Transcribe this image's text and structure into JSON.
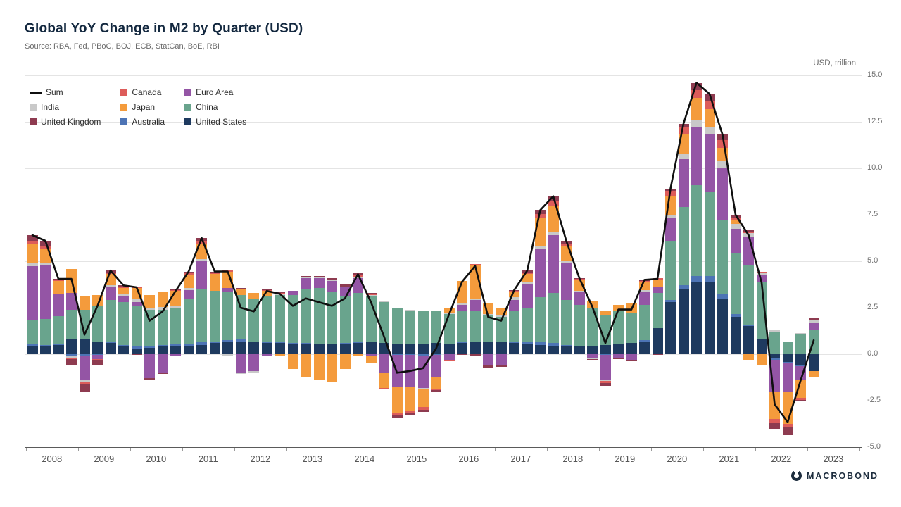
{
  "page": {
    "title": "Global YoY Change in M2 by Quarter (USD)",
    "source": "Source: RBA, Fed, PBoC, BOJ, ECB, StatCan, BoE, RBI",
    "unit_label": "USD, trillion",
    "brand": "MACROBOND"
  },
  "chart_data": {
    "type": "bar",
    "subtype": "stacked-bar-with-line",
    "grid": true,
    "legend_position": "top-left",
    "ylim": [
      -5,
      15
    ],
    "yticks": [
      {
        "value": 15,
        "label": "15.0"
      },
      {
        "value": 12.5,
        "label": "12.5"
      },
      {
        "value": 10,
        "label": "10.0"
      },
      {
        "value": 7.5,
        "label": "7.5"
      },
      {
        "value": 5,
        "label": "5.0"
      },
      {
        "value": 2.5,
        "label": "2.5"
      },
      {
        "value": 0,
        "label": "0.0"
      },
      {
        "value": -2.5,
        "label": "-2.5"
      },
      {
        "value": -5,
        "label": "-5.0"
      }
    ],
    "year_labels": [
      "2008",
      "2009",
      "2010",
      "2011",
      "2012",
      "2013",
      "2014",
      "2015",
      "2016",
      "2017",
      "2018",
      "2019",
      "2020",
      "2021",
      "2022",
      "2023"
    ],
    "x": [
      "2008 Q1",
      "2008 Q2",
      "2008 Q3",
      "2008 Q4",
      "2009 Q1",
      "2009 Q2",
      "2009 Q3",
      "2009 Q4",
      "2010 Q1",
      "2010 Q2",
      "2010 Q3",
      "2010 Q4",
      "2011 Q1",
      "2011 Q2",
      "2011 Q3",
      "2011 Q4",
      "2012 Q1",
      "2012 Q2",
      "2012 Q3",
      "2012 Q4",
      "2013 Q1",
      "2013 Q2",
      "2013 Q3",
      "2013 Q4",
      "2014 Q1",
      "2014 Q2",
      "2014 Q3",
      "2014 Q4",
      "2015 Q1",
      "2015 Q2",
      "2015 Q3",
      "2015 Q4",
      "2016 Q1",
      "2016 Q2",
      "2016 Q3",
      "2016 Q4",
      "2017 Q1",
      "2017 Q2",
      "2017 Q3",
      "2017 Q4",
      "2018 Q1",
      "2018 Q2",
      "2018 Q3",
      "2018 Q4",
      "2019 Q1",
      "2019 Q2",
      "2019 Q3",
      "2019 Q4",
      "2020 Q1",
      "2020 Q2",
      "2020 Q3",
      "2020 Q4",
      "2021 Q1",
      "2021 Q2",
      "2021 Q3",
      "2021 Q4",
      "2022 Q1",
      "2022 Q2",
      "2022 Q3",
      "2022 Q4",
      "2023 Q1"
    ],
    "series": [
      {
        "name": "United States",
        "color": "#1e3a5f",
        "values": [
          0.45,
          0.4,
          0.5,
          0.8,
          0.8,
          0.7,
          0.6,
          0.4,
          0.3,
          0.35,
          0.4,
          0.45,
          0.4,
          0.5,
          0.6,
          0.7,
          0.7,
          0.65,
          0.6,
          0.6,
          0.55,
          0.55,
          0.55,
          0.55,
          0.55,
          0.6,
          0.65,
          0.6,
          0.55,
          0.55,
          0.55,
          0.6,
          0.55,
          0.6,
          0.65,
          0.7,
          0.65,
          0.6,
          0.55,
          0.5,
          0.45,
          0.4,
          0.4,
          0.45,
          0.5,
          0.55,
          0.6,
          0.7,
          1.4,
          2.8,
          3.5,
          3.9,
          3.9,
          3.0,
          2.0,
          1.5,
          0.8,
          -0.2,
          -0.4,
          -0.6,
          -0.9
        ]
      },
      {
        "name": "Australia",
        "color": "#4d74b5",
        "values": [
          0.1,
          0.1,
          0.05,
          -0.1,
          -0.1,
          -0.05,
          0.1,
          0.1,
          0.1,
          0.05,
          0.1,
          0.1,
          0.15,
          0.2,
          0.1,
          0.05,
          0.1,
          0.05,
          0.1,
          0.1,
          0.05,
          0.05,
          0.0,
          0.0,
          0.05,
          0.1,
          0.05,
          0.0,
          -0.05,
          -0.05,
          -0.1,
          -0.05,
          0.0,
          0.05,
          0.05,
          0.0,
          0.05,
          0.1,
          0.1,
          0.15,
          0.15,
          0.1,
          0.05,
          0.0,
          -0.05,
          0.0,
          0.0,
          0.05,
          0.0,
          0.1,
          0.2,
          0.3,
          0.3,
          0.25,
          0.15,
          0.1,
          0.05,
          -0.1,
          -0.1,
          -0.05,
          0.0
        ]
      },
      {
        "name": "China",
        "color": "#69a48d",
        "values": [
          1.3,
          1.4,
          1.5,
          1.6,
          1.6,
          1.9,
          2.2,
          2.3,
          2.2,
          2.0,
          1.9,
          1.9,
          2.4,
          2.8,
          2.7,
          2.6,
          2.4,
          2.3,
          2.4,
          2.5,
          2.6,
          2.9,
          3.0,
          2.8,
          2.5,
          2.6,
          2.4,
          2.2,
          1.9,
          1.8,
          1.8,
          1.7,
          1.6,
          1.7,
          1.6,
          1.4,
          1.3,
          1.6,
          1.8,
          2.4,
          2.7,
          2.4,
          2.2,
          2.0,
          1.6,
          1.8,
          1.6,
          1.9,
          1.9,
          3.2,
          4.2,
          4.9,
          4.5,
          4.0,
          3.3,
          3.2,
          3.0,
          1.2,
          0.7,
          1.1,
          1.3
        ]
      },
      {
        "name": "Euro Area",
        "color": "#9455a5",
        "values": [
          2.9,
          2.9,
          1.2,
          0.9,
          -1.3,
          -0.2,
          0.7,
          0.3,
          0.2,
          -1.3,
          -1.0,
          -0.1,
          0.5,
          1.5,
          0.0,
          0.2,
          -1.0,
          -0.9,
          -0.1,
          0.0,
          0.2,
          0.6,
          0.55,
          0.6,
          0.55,
          0.8,
          -0.1,
          -1.0,
          -1.7,
          -1.7,
          -1.7,
          -1.2,
          -0.3,
          0.3,
          0.6,
          -0.6,
          -0.6,
          0.6,
          1.3,
          2.6,
          3.1,
          2.0,
          0.7,
          -0.2,
          -1.3,
          -0.2,
          -0.3,
          0.7,
          0.3,
          1.2,
          2.6,
          3.1,
          3.1,
          2.8,
          1.3,
          1.5,
          0.4,
          -1.7,
          -1.5,
          -0.7,
          0.4
        ]
      },
      {
        "name": "India",
        "color": "#c9c9c9",
        "values": [
          0.15,
          0.1,
          0.0,
          -0.1,
          -0.1,
          0.0,
          0.1,
          0.15,
          0.15,
          0.1,
          0.15,
          0.15,
          0.1,
          0.1,
          0.0,
          -0.1,
          -0.05,
          -0.1,
          0.0,
          0.05,
          0.0,
          0.05,
          0.05,
          0.05,
          0.0,
          0.05,
          0.1,
          0.05,
          0.0,
          0.05,
          -0.05,
          0.0,
          0.05,
          0.1,
          0.1,
          0.05,
          0.1,
          0.15,
          0.15,
          0.2,
          0.2,
          0.1,
          0.05,
          -0.05,
          -0.1,
          0.0,
          0.05,
          0.1,
          0.0,
          0.2,
          0.3,
          0.4,
          0.4,
          0.35,
          0.25,
          0.2,
          0.15,
          0.1,
          -0.05,
          0.05,
          0.1
        ]
      },
      {
        "name": "Japan",
        "color": "#f49b3c",
        "values": [
          1.0,
          0.8,
          0.7,
          1.3,
          0.7,
          0.6,
          0.6,
          0.3,
          0.6,
          0.7,
          0.8,
          0.8,
          0.7,
          0.8,
          0.9,
          0.9,
          0.3,
          0.3,
          0.3,
          -0.1,
          -0.8,
          -1.2,
          -1.4,
          -1.5,
          -0.8,
          -0.1,
          -0.4,
          -0.8,
          -1.4,
          -1.3,
          -1.0,
          -0.6,
          0.3,
          1.2,
          1.8,
          0.6,
          0.4,
          0.3,
          0.4,
          1.5,
          1.4,
          0.8,
          0.6,
          0.4,
          0.2,
          0.3,
          0.5,
          0.4,
          0.4,
          1.0,
          1.0,
          1.2,
          1.0,
          0.7,
          0.2,
          -0.3,
          -0.6,
          -1.5,
          -1.7,
          -1.0,
          -0.3
        ]
      },
      {
        "name": "Canada",
        "color": "#dd5c5a",
        "values": [
          0.2,
          0.15,
          0.05,
          -0.05,
          -0.1,
          -0.05,
          0.1,
          0.1,
          0.1,
          0.0,
          0.0,
          0.05,
          0.1,
          0.2,
          0.1,
          0.05,
          0.0,
          0.0,
          0.05,
          0.05,
          0.0,
          0.0,
          0.0,
          0.0,
          0.0,
          0.1,
          0.05,
          -0.05,
          -0.15,
          -0.15,
          -0.15,
          -0.1,
          -0.05,
          0.0,
          0.05,
          0.0,
          0.0,
          0.05,
          0.1,
          0.2,
          0.25,
          0.15,
          0.05,
          0.0,
          -0.1,
          0.0,
          0.0,
          0.1,
          0.1,
          0.3,
          0.4,
          0.4,
          0.45,
          0.4,
          0.15,
          0.1,
          0.05,
          -0.2,
          -0.2,
          -0.1,
          0.05
        ]
      },
      {
        "name": "United Kingdom",
        "color": "#8e3b50",
        "values": [
          0.3,
          0.25,
          0.05,
          -0.3,
          -0.45,
          -0.3,
          0.1,
          0.05,
          -0.05,
          -0.1,
          -0.05,
          0.05,
          0.1,
          0.15,
          0.05,
          0.05,
          0.05,
          0.0,
          0.05,
          0.05,
          0.0,
          0.05,
          0.05,
          0.1,
          0.15,
          0.15,
          0.05,
          -0.05,
          -0.15,
          -0.1,
          -0.1,
          -0.05,
          0.0,
          -0.05,
          -0.1,
          -0.15,
          -0.1,
          0.05,
          0.1,
          0.2,
          0.25,
          0.15,
          0.05,
          -0.05,
          -0.15,
          -0.05,
          -0.05,
          0.05,
          -0.05,
          0.1,
          0.2,
          0.4,
          0.35,
          0.3,
          0.15,
          0.1,
          0.0,
          -0.3,
          -0.4,
          -0.1,
          0.1
        ]
      }
    ],
    "line_series": {
      "name": "Sum",
      "color": "#0f0f0f",
      "values": [
        6.4,
        6.1,
        4.05,
        4.05,
        1.05,
        2.6,
        4.5,
        3.7,
        3.6,
        1.8,
        2.3,
        3.4,
        4.45,
        6.25,
        4.45,
        4.45,
        2.5,
        2.3,
        3.4,
        3.25,
        2.6,
        3.0,
        2.8,
        2.6,
        3.0,
        4.3,
        2.8,
        0.95,
        -1.0,
        -0.9,
        -0.75,
        0.3,
        2.15,
        3.9,
        4.75,
        2.0,
        1.8,
        3.45,
        4.5,
        7.75,
        8.5,
        6.1,
        4.1,
        2.55,
        0.6,
        2.4,
        2.4,
        4.0,
        4.05,
        8.9,
        12.4,
        14.6,
        14.0,
        11.8,
        7.5,
        6.4,
        3.85,
        -2.7,
        -3.65,
        -1.4,
        0.75
      ]
    },
    "legend": [
      {
        "label": "Sum",
        "color": "#0f0f0f",
        "swatch": "line"
      },
      {
        "label": "Canada",
        "color": "#dd5c5a",
        "swatch": "square"
      },
      {
        "label": "Euro Area",
        "color": "#9455a5",
        "swatch": "square"
      },
      {
        "label": "India",
        "color": "#c9c9c9",
        "swatch": "square"
      },
      {
        "label": "Japan",
        "color": "#f49b3c",
        "swatch": "square"
      },
      {
        "label": "China",
        "color": "#69a48d",
        "swatch": "square"
      },
      {
        "label": "United Kingdom",
        "color": "#8e3b50",
        "swatch": "square"
      },
      {
        "label": "Australia",
        "color": "#4d74b5",
        "swatch": "square"
      },
      {
        "label": "United States",
        "color": "#1e3a5f",
        "swatch": "square"
      }
    ]
  }
}
